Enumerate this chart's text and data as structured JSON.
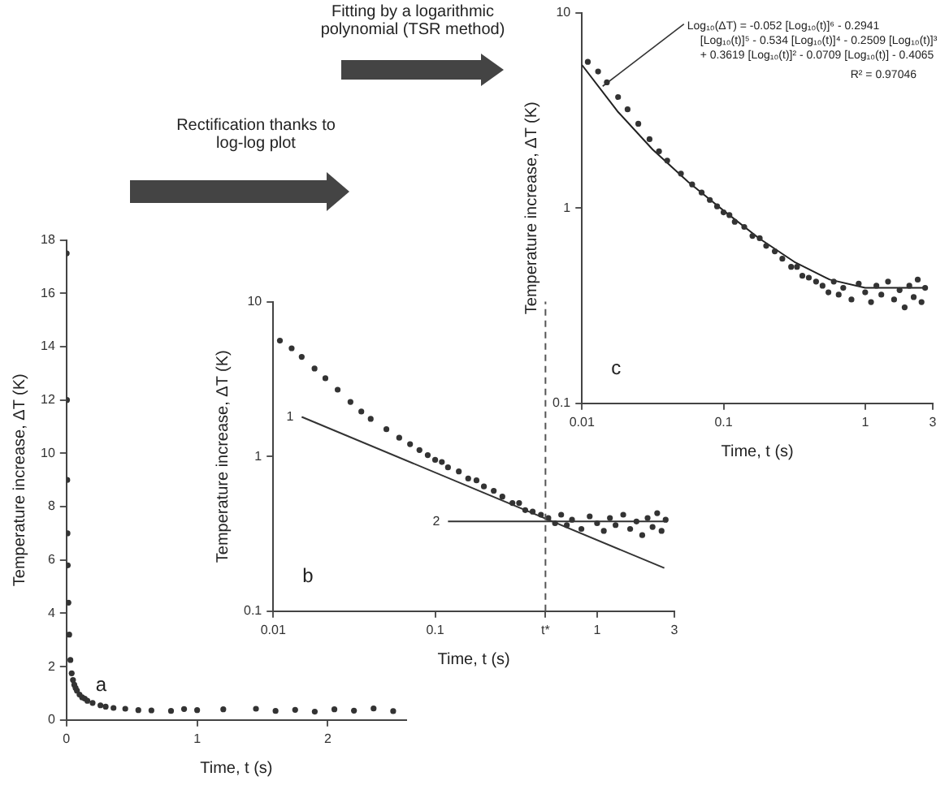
{
  "chart_data": [
    {
      "type": "scatter",
      "title": "a",
      "xlabel": "Time, t (s)",
      "ylabel": "Temperature increase, ΔT (K)",
      "xlim": [
        0,
        2.6
      ],
      "xticks": [
        0,
        1,
        2
      ],
      "ylim": [
        0,
        18
      ],
      "yticks": [
        0,
        2,
        4,
        6,
        8,
        10,
        12,
        14,
        16,
        18
      ],
      "series": [
        {
          "color": "#333333",
          "marker": "circle",
          "x": [
            0.002,
            0.004,
            0.006,
            0.008,
            0.01,
            0.015,
            0.021,
            0.03,
            0.04,
            0.05,
            0.06,
            0.07,
            0.08,
            0.1,
            0.12,
            0.14,
            0.16,
            0.2,
            0.26,
            0.3,
            0.36,
            0.45,
            0.55,
            0.65,
            0.8,
            0.9,
            1.0,
            1.2,
            1.45,
            1.6,
            1.75,
            1.9,
            2.05,
            2.2,
            2.35,
            2.5
          ],
          "values": [
            17.5,
            12,
            9,
            7,
            5.8,
            4.4,
            3.2,
            2.25,
            1.75,
            1.5,
            1.32,
            1.2,
            1.1,
            0.95,
            0.85,
            0.8,
            0.72,
            0.64,
            0.55,
            0.5,
            0.45,
            0.42,
            0.37,
            0.36,
            0.34,
            0.41,
            0.37,
            0.4,
            0.42,
            0.34,
            0.38,
            0.31,
            0.4,
            0.35,
            0.43,
            0.33
          ]
        }
      ]
    },
    {
      "type": "scatter",
      "title": "b",
      "subtitle": "Rectification thanks to log-log plot",
      "xlabel": "Time, t (s)",
      "ylabel": "Temperature increase, ΔT (K)",
      "log": "xy",
      "xlim": [
        0.01,
        3
      ],
      "xticks": [
        0.01,
        0.1,
        {
          "value": 0.48,
          "label": "t*"
        },
        1,
        3
      ],
      "ylim": [
        0.1,
        10
      ],
      "yticks": [
        0.1,
        1,
        10
      ],
      "ref_lines": [
        {
          "axis": "x",
          "value": 0.48,
          "line_style": "dashed",
          "color": "#555555"
        }
      ],
      "series": [
        {
          "color": "#333333",
          "marker": "circle",
          "x": [
            0.011,
            0.013,
            0.015,
            0.018,
            0.021,
            0.025,
            0.03,
            0.035,
            0.04,
            0.05,
            0.06,
            0.07,
            0.08,
            0.09,
            0.1,
            0.11,
            0.12,
            0.14,
            0.16,
            0.18,
            0.2,
            0.23,
            0.26,
            0.3,
            0.33,
            0.36,
            0.4,
            0.45,
            0.5,
            0.55,
            0.6,
            0.65,
            0.7,
            0.8,
            0.9,
            1.0,
            1.1,
            1.2,
            1.3,
            1.45,
            1.6,
            1.75,
            1.9,
            2.05,
            2.2,
            2.35,
            2.5,
            2.65
          ],
          "values": [
            5.6,
            5.0,
            4.4,
            3.7,
            3.2,
            2.7,
            2.25,
            1.95,
            1.75,
            1.5,
            1.32,
            1.2,
            1.1,
            1.02,
            0.95,
            0.92,
            0.85,
            0.8,
            0.72,
            0.7,
            0.64,
            0.6,
            0.55,
            0.5,
            0.5,
            0.45,
            0.44,
            0.42,
            0.4,
            0.37,
            0.42,
            0.36,
            0.39,
            0.34,
            0.41,
            0.37,
            0.33,
            0.4,
            0.36,
            0.42,
            0.34,
            0.38,
            0.31,
            0.4,
            0.35,
            0.43,
            0.33,
            0.39
          ]
        },
        {
          "type": "line",
          "name": "1",
          "color": "#333333",
          "x": [
            0.015,
            2.6
          ],
          "values": [
            1.8,
            0.19
          ]
        },
        {
          "type": "line",
          "name": "2",
          "color": "#333333",
          "x": [
            0.12,
            2.7
          ],
          "values": [
            0.38,
            0.38
          ]
        }
      ]
    },
    {
      "type": "scatter",
      "title": "c",
      "subtitle": "Fitting by a logarithmic polynomial (TSR method)",
      "xlabel": "Time, t (s)",
      "ylabel": "Temperature increase, ΔT (K)",
      "log": "xy",
      "xlim": [
        0.01,
        3
      ],
      "xticks": [
        0.01,
        0.1,
        1,
        3
      ],
      "ylim": [
        0.1,
        10
      ],
      "yticks": [
        0.1,
        1,
        10
      ],
      "annotations": [
        {
          "text": "Log₁₀(ΔT) = -0.052 [Log₁₀(t)]⁶ - 0.2941 [Log₁₀(t)]⁵ - 0.534 [Log₁₀(t)]⁴ - 0.2509 [Log₁₀(t)]³ + 0.3619 [Log₁₀(t)]² - 0.0709 [Log₁₀(t)] - 0.4065",
          "x": 0.014,
          "y": 4.2
        },
        "R² = 0.97046"
      ],
      "series": [
        {
          "color": "#333333",
          "marker": "circle",
          "x": [
            0.011,
            0.013,
            0.015,
            0.018,
            0.021,
            0.025,
            0.03,
            0.035,
            0.04,
            0.05,
            0.06,
            0.07,
            0.08,
            0.09,
            0.1,
            0.11,
            0.12,
            0.14,
            0.16,
            0.18,
            0.2,
            0.23,
            0.26,
            0.3,
            0.33,
            0.36,
            0.4,
            0.45,
            0.5,
            0.55,
            0.6,
            0.65,
            0.7,
            0.8,
            0.9,
            1.0,
            1.1,
            1.2,
            1.3,
            1.45,
            1.6,
            1.75,
            1.9,
            2.05,
            2.2,
            2.35,
            2.5,
            2.65
          ],
          "values": [
            5.6,
            5.0,
            4.4,
            3.7,
            3.2,
            2.7,
            2.25,
            1.95,
            1.75,
            1.5,
            1.32,
            1.2,
            1.1,
            1.02,
            0.95,
            0.92,
            0.85,
            0.8,
            0.72,
            0.7,
            0.64,
            0.6,
            0.55,
            0.5,
            0.5,
            0.45,
            0.44,
            0.42,
            0.4,
            0.37,
            0.42,
            0.36,
            0.39,
            0.34,
            0.41,
            0.37,
            0.33,
            0.4,
            0.36,
            0.42,
            0.34,
            0.38,
            0.31,
            0.4,
            0.35,
            0.43,
            0.33,
            0.39
          ]
        },
        {
          "type": "line",
          "color": "#222222",
          "x": [
            0.01,
            0.0178,
            0.0316,
            0.0562,
            0.1,
            0.178,
            0.316,
            0.562,
            1,
            1.78,
            2.63
          ],
          "values": [
            5.4,
            3.13,
            1.99,
            1.36,
            0.97,
            0.7,
            0.53,
            0.43,
            0.39,
            0.39,
            0.39
          ]
        }
      ]
    }
  ]
}
